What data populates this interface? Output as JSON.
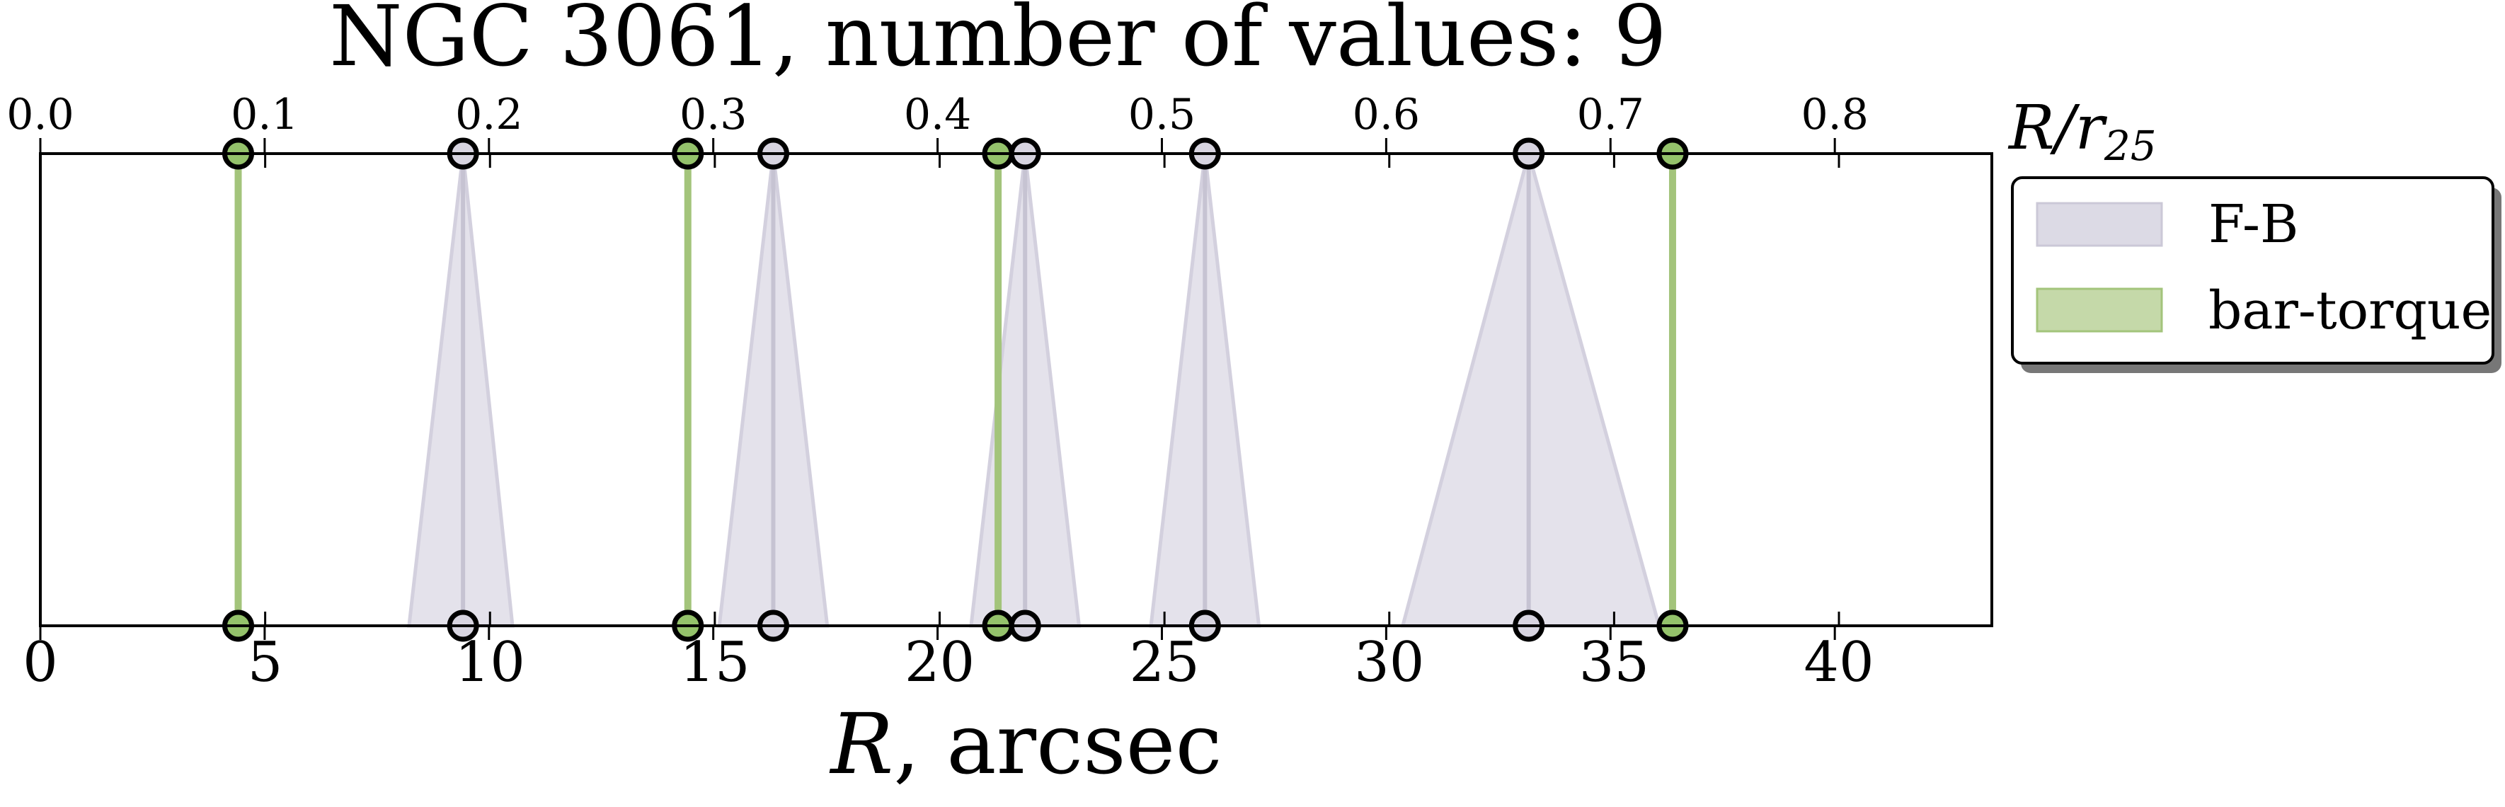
{
  "chart_data": {
    "type": "scatter",
    "title": "NGC 3061, number of values: 9",
    "xlabel_symbol": "R",
    "xlabel_rest": ", arcsec",
    "top_axis_label_main": "R/r",
    "top_axis_label_sub": "25",
    "xlim": [
      0,
      43.4
    ],
    "x_ticks": [
      "0",
      "5",
      "10",
      "15",
      "20",
      "25",
      "30",
      "35",
      "40"
    ],
    "top_xlim": [
      0.0,
      0.87
    ],
    "top_ticks": [
      "0.0",
      "0.1",
      "0.2",
      "0.3",
      "0.4",
      "0.5",
      "0.6",
      "0.7",
      "0.8"
    ],
    "legend_placement": "upper-right, outside plot",
    "series": [
      {
        "name": "F-B",
        "color": "#ccc9d9",
        "points": [
          {
            "x": 9.4,
            "err_low": 1.2,
            "err_high": 1.1
          },
          {
            "x": 16.3,
            "err_low": 1.2,
            "err_high": 1.2
          },
          {
            "x": 21.9,
            "err_low": 1.2,
            "err_high": 1.2
          },
          {
            "x": 25.9,
            "err_low": 1.2,
            "err_high": 1.2
          },
          {
            "x": 33.1,
            "err_low": 2.8,
            "err_high": 2.9
          }
        ]
      },
      {
        "name": "bar-torque",
        "color": "#a3c47b",
        "points": [
          {
            "x": 4.4
          },
          {
            "x": 14.4
          },
          {
            "x": 21.3
          },
          {
            "x": 36.3
          }
        ]
      }
    ]
  }
}
